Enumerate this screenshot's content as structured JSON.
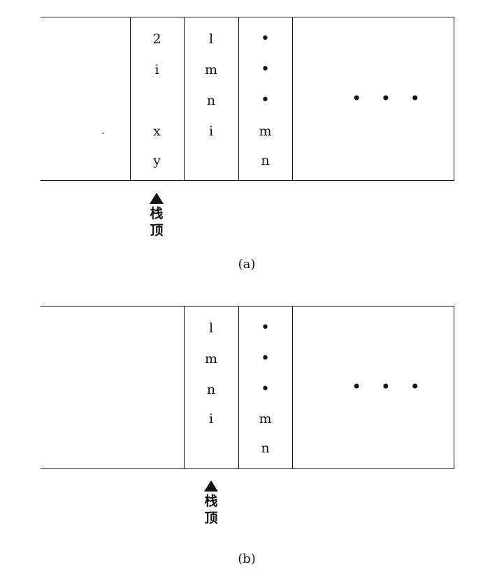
{
  "panel_a": {
    "caption": "(a)",
    "stack_top_label": "栈\n顶",
    "ellipsis": "• • •",
    "stray_dot": ".",
    "frames": [
      [
        "2",
        "i",
        "",
        "x",
        "y"
      ],
      [
        "l",
        "m",
        "n",
        "i",
        ""
      ],
      [
        "•",
        "•",
        "•",
        "m",
        "n"
      ]
    ]
  },
  "panel_b": {
    "caption": "(b)",
    "stack_top_label": "栈\n顶",
    "ellipsis": "• • •",
    "frames": [
      [
        "l",
        "m",
        "n",
        "i",
        ""
      ],
      [
        "•",
        "•",
        "•",
        "m",
        "n"
      ]
    ]
  }
}
